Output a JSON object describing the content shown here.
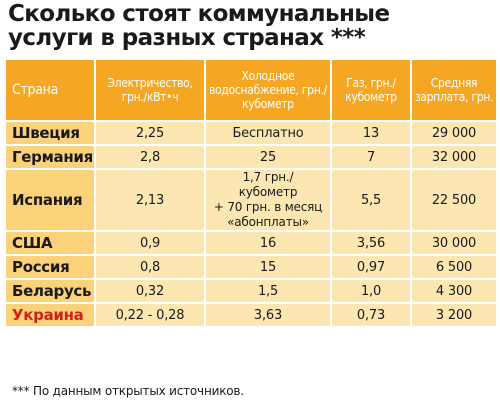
{
  "title": {
    "line1": "Сколько стоят коммунальные",
    "line2": "услуги в разных странах ***"
  },
  "table": {
    "headers": [
      "Страна",
      "Электричество, грн./кВт•ч",
      "Холодное водоснабжение, грн./кубометр",
      "Газ, грн./ кубометр",
      "Средняя зарплата, грн."
    ],
    "rows": [
      {
        "country": "Швеция",
        "electricity": "2,25",
        "water": "Бесплатно",
        "gas": "13",
        "salary": "29 000"
      },
      {
        "country": "Германия",
        "electricity": "2,8",
        "water": "25",
        "gas": "7",
        "salary": "32 000"
      },
      {
        "country": "Испания",
        "electricity": "2,13",
        "water_lines": [
          "1,7 грн./",
          "кубометр",
          "+ 70 грн. в месяц",
          "«абонплаты»"
        ],
        "gas": "5,5",
        "salary": "22 500"
      },
      {
        "country": "США",
        "electricity": "0,9",
        "water": "16",
        "gas": "3,56",
        "salary": "30 000"
      },
      {
        "country": "Россия",
        "electricity": "0,8",
        "water": "15",
        "gas": "0,97",
        "salary": "6 500"
      },
      {
        "country": "Беларусь",
        "electricity": "0,32",
        "water": "1,5",
        "gas": "1,0",
        "salary": "4 300"
      },
      {
        "country": "Украина",
        "electricity": "0,22 - 0,28",
        "water": "3,63",
        "gas": "0,73",
        "salary": "3 200"
      }
    ],
    "highlight_color": "#d0221b",
    "header_color": "#f5a623",
    "cell_color": "#fce7b3",
    "country_cell_color": "#fbd27a"
  },
  "footnote": "*** По данным открытых источников."
}
